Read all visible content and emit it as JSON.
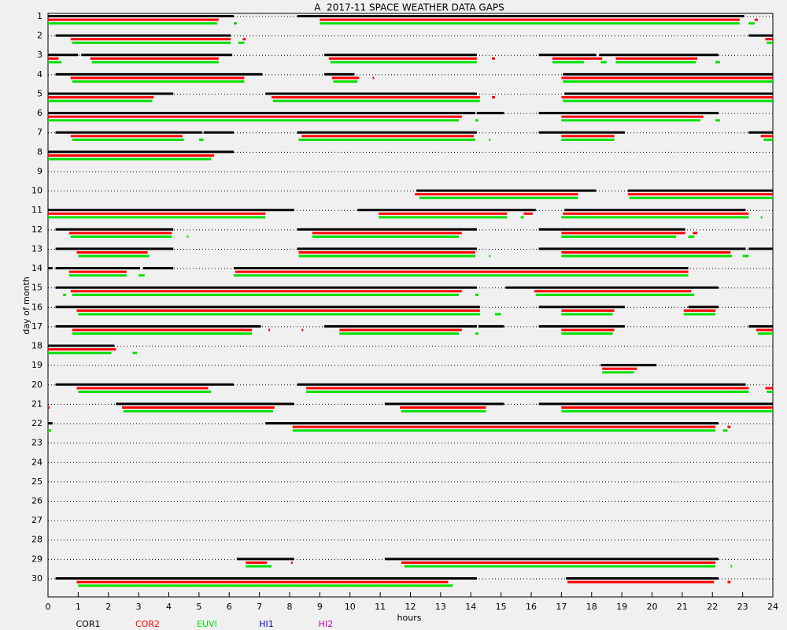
{
  "chart_data": {
    "type": "gaps",
    "title": "A  2017-11 SPACE WEATHER DATA GAPS",
    "x_label": "hours",
    "y_label": "day of month",
    "xlim": [
      0,
      24
    ],
    "xticks": [
      0,
      1,
      2,
      3,
      4,
      5,
      6,
      7,
      8,
      9,
      10,
      11,
      12,
      13,
      14,
      15,
      16,
      17,
      18,
      19,
      20,
      21,
      22,
      23,
      24
    ],
    "categories": [
      1,
      2,
      3,
      4,
      5,
      6,
      7,
      8,
      9,
      10,
      11,
      12,
      13,
      14,
      15,
      16,
      17,
      18,
      19,
      20,
      21,
      22,
      23,
      24,
      25,
      26,
      27,
      28,
      29,
      30
    ],
    "series": [
      {
        "name": "COR1",
        "color": "#000000",
        "gaps": [
          [
            [
              0,
              6.15
            ],
            [
              8.25,
              23.05
            ]
          ],
          [
            [
              0.25,
              6.05
            ],
            [
              23.2,
              24
            ]
          ],
          [
            [
              0,
              1.0
            ],
            [
              1.1,
              6.1
            ],
            [
              9.15,
              14.2
            ],
            [
              16.25,
              18.15
            ],
            [
              18.25,
              22.2
            ]
          ],
          [
            [
              0.25,
              7.1
            ],
            [
              9.15,
              10.15
            ],
            [
              17.05,
              24
            ]
          ],
          [
            [
              0,
              4.15
            ],
            [
              7.2,
              14.2
            ],
            [
              17.1,
              24
            ]
          ],
          [
            [
              0,
              14.15
            ],
            [
              14.2,
              15.1
            ],
            [
              16.25,
              22.2
            ]
          ],
          [
            [
              0.25,
              5.1
            ],
            [
              5.15,
              6.15
            ],
            [
              8.25,
              14.2
            ],
            [
              16.25,
              19.1
            ],
            [
              23.2,
              24
            ]
          ],
          [
            [
              0,
              6.15
            ]
          ],
          [],
          [
            [
              12.2,
              18.15
            ],
            [
              19.2,
              24
            ]
          ],
          [
            [
              0,
              8.15
            ],
            [
              10.25,
              16.15
            ],
            [
              17.1,
              23.1
            ]
          ],
          [
            [
              0.25,
              4.15
            ],
            [
              8.25,
              14.2
            ],
            [
              16.25,
              21.1
            ]
          ],
          [
            [
              0.25,
              4.15
            ],
            [
              8.25,
              14.2
            ],
            [
              16.25,
              23.1
            ],
            [
              23.2,
              24
            ]
          ],
          [
            [
              0,
              0.15
            ],
            [
              0.25,
              3.05
            ],
            [
              3.15,
              4.15
            ],
            [
              6.15,
              21.2
            ]
          ],
          [
            [
              0.25,
              14.2
            ],
            [
              15.15,
              22.2
            ]
          ],
          [
            [
              0.25,
              14.3
            ],
            [
              16.25,
              19.1
            ],
            [
              21.2,
              22.2
            ]
          ],
          [
            [
              0.25,
              7.05
            ],
            [
              9.15,
              14.2
            ],
            [
              14.25,
              15.1
            ],
            [
              16.25,
              19.1
            ],
            [
              23.2,
              24
            ]
          ],
          [
            [
              0,
              2.2
            ]
          ],
          [
            [
              18.3,
              20.15
            ]
          ],
          [
            [
              0.25,
              6.15
            ],
            [
              8.25,
              23.1
            ]
          ],
          [
            [
              2.25,
              8.15
            ],
            [
              11.15,
              15.1
            ],
            [
              16.25,
              24
            ]
          ],
          [
            [
              0,
              0.15
            ],
            [
              7.2,
              22.2
            ]
          ],
          [],
          [],
          [],
          [],
          [],
          [],
          [
            [
              6.25,
              8.15
            ],
            [
              11.15,
              22.2
            ]
          ],
          [
            [
              0.25,
              14.2
            ],
            [
              17.15,
              22.2
            ]
          ]
        ]
      },
      {
        "name": "COR2",
        "color": "#ff0000",
        "gaps": [
          [
            [
              0,
              5.65
            ],
            [
              9.0,
              22.9
            ],
            [
              23.4,
              23.5
            ]
          ],
          [
            [
              0.75,
              6.05
            ],
            [
              6.45,
              6.55
            ],
            [
              23.75,
              24
            ]
          ],
          [
            [
              0,
              0.35
            ],
            [
              1.4,
              5.65
            ],
            [
              9.3,
              14.2
            ],
            [
              14.7,
              14.8
            ],
            [
              16.7,
              18.35
            ],
            [
              18.8,
              21.5
            ]
          ],
          [
            [
              0.75,
              6.5
            ],
            [
              9.4,
              10.3
            ],
            [
              10.75,
              10.8
            ],
            [
              17.0,
              24
            ]
          ],
          [
            [
              0,
              3.5
            ],
            [
              7.4,
              14.3
            ],
            [
              14.7,
              14.8
            ],
            [
              17.0,
              24
            ]
          ],
          [
            [
              0,
              13.7
            ],
            [
              17.0,
              21.7
            ]
          ],
          [
            [
              0.75,
              4.45
            ],
            [
              8.4,
              14.1
            ],
            [
              17.0,
              18.75
            ],
            [
              23.6,
              24
            ]
          ],
          [
            [
              0,
              5.5
            ]
          ],
          [],
          [
            [
              12.15,
              17.55
            ],
            [
              19.2,
              24
            ]
          ],
          [
            [
              0,
              7.2
            ],
            [
              10.95,
              15.2
            ],
            [
              15.75,
              16.05
            ],
            [
              17.05,
              23.2
            ]
          ],
          [
            [
              0.7,
              4.1
            ],
            [
              8.75,
              13.7
            ],
            [
              17.0,
              21.1
            ],
            [
              21.35,
              21.5
            ]
          ],
          [
            [
              0.95,
              3.3
            ],
            [
              8.3,
              14.15
            ],
            [
              17.0,
              22.6
            ]
          ],
          [
            [
              0.7,
              2.6
            ],
            [
              6.2,
              21.2
            ]
          ],
          [
            [
              0.75,
              13.7
            ],
            [
              16.1,
              21.3
            ]
          ],
          [
            [
              0.95,
              14.3
            ],
            [
              17.0,
              18.75
            ],
            [
              21.05,
              22.1
            ]
          ],
          [
            [
              0.8,
              6.75
            ],
            [
              7.3,
              7.35
            ],
            [
              8.4,
              8.45
            ],
            [
              9.65,
              13.7
            ],
            [
              17.0,
              18.75
            ],
            [
              23.45,
              24
            ]
          ],
          [
            [
              0,
              2.25
            ]
          ],
          [
            [
              18.35,
              19.5
            ]
          ],
          [
            [
              0.95,
              5.3
            ],
            [
              8.55,
              23.2
            ],
            [
              23.75,
              24
            ]
          ],
          [
            [
              0,
              0.05
            ],
            [
              2.45,
              7.5
            ],
            [
              11.65,
              14.5
            ],
            [
              17.0,
              24
            ]
          ],
          [
            [
              8.1,
              22.1
            ],
            [
              22.5,
              22.6
            ]
          ],
          [],
          [],
          [],
          [],
          [],
          [],
          [
            [
              6.55,
              7.25
            ],
            [
              8.05,
              8.1
            ],
            [
              11.7,
              22.1
            ]
          ],
          [
            [
              0.95,
              13.25
            ],
            [
              17.2,
              22.05
            ],
            [
              22.5,
              22.6
            ]
          ]
        ]
      },
      {
        "name": "EUVI",
        "color": "#00e000",
        "gaps": [
          [
            [
              0,
              5.6
            ],
            [
              6.15,
              6.25
            ],
            [
              9.0,
              22.9
            ],
            [
              23.2,
              23.4
            ]
          ],
          [
            [
              0.8,
              6.05
            ],
            [
              6.3,
              6.5
            ],
            [
              23.8,
              24
            ]
          ],
          [
            [
              0,
              0.45
            ],
            [
              1.45,
              5.65
            ],
            [
              9.35,
              14.2
            ],
            [
              16.7,
              17.75
            ],
            [
              18.3,
              18.5
            ],
            [
              18.8,
              21.45
            ],
            [
              22.1,
              22.25
            ]
          ],
          [
            [
              0.8,
              6.5
            ],
            [
              9.45,
              10.25
            ],
            [
              17.05,
              24
            ]
          ],
          [
            [
              0,
              3.45
            ],
            [
              7.45,
              14.3
            ],
            [
              17.05,
              24
            ]
          ],
          [
            [
              0,
              13.6
            ],
            [
              14.15,
              14.25
            ],
            [
              17.0,
              21.6
            ],
            [
              22.1,
              22.25
            ]
          ],
          [
            [
              0.8,
              4.5
            ],
            [
              5.0,
              5.15
            ],
            [
              8.3,
              14.15
            ],
            [
              14.6,
              14.65
            ],
            [
              17.0,
              18.75
            ],
            [
              23.7,
              24
            ]
          ],
          [
            [
              0,
              5.4
            ]
          ],
          [],
          [
            [
              12.3,
              17.55
            ],
            [
              19.25,
              24
            ]
          ],
          [
            [
              0,
              7.2
            ],
            [
              10.95,
              15.2
            ],
            [
              15.65,
              15.75
            ],
            [
              17.0,
              23.2
            ],
            [
              23.6,
              23.65
            ]
          ],
          [
            [
              0.75,
              4.1
            ],
            [
              4.6,
              4.65
            ],
            [
              8.75,
              13.6
            ],
            [
              17.0,
              20.8
            ],
            [
              21.2,
              21.4
            ]
          ],
          [
            [
              1.0,
              3.35
            ],
            [
              8.3,
              14.15
            ],
            [
              14.6,
              14.65
            ],
            [
              17.0,
              22.65
            ],
            [
              23.0,
              23.2
            ]
          ],
          [
            [
              0.7,
              2.6
            ],
            [
              3.0,
              3.2
            ],
            [
              6.15,
              21.2
            ]
          ],
          [
            [
              0.5,
              0.6
            ],
            [
              0.8,
              13.6
            ],
            [
              14.15,
              14.25
            ],
            [
              16.15,
              21.4
            ]
          ],
          [
            [
              1.0,
              14.3
            ],
            [
              14.8,
              15.0
            ],
            [
              17.0,
              18.7
            ],
            [
              21.05,
              22.1
            ]
          ],
          [
            [
              0.8,
              6.75
            ],
            [
              9.65,
              13.6
            ],
            [
              14.15,
              14.25
            ],
            [
              17.0,
              18.7
            ],
            [
              23.5,
              24
            ]
          ],
          [
            [
              0,
              2.1
            ],
            [
              2.8,
              2.95
            ]
          ],
          [
            [
              18.35,
              19.4
            ]
          ],
          [
            [
              1.0,
              5.4
            ],
            [
              8.55,
              23.2
            ],
            [
              23.8,
              24
            ]
          ],
          [
            [
              2.5,
              7.45
            ],
            [
              11.7,
              14.5
            ],
            [
              17.0,
              24
            ]
          ],
          [
            [
              0,
              0.1
            ],
            [
              8.1,
              22.1
            ],
            [
              22.35,
              22.5
            ]
          ],
          [],
          [],
          [],
          [],
          [],
          [],
          [
            [
              6.55,
              7.4
            ],
            [
              11.8,
              22.1
            ],
            [
              22.6,
              22.65
            ]
          ],
          [
            [
              1.0,
              13.4
            ]
          ]
        ]
      },
      {
        "name": "HI1",
        "color": "#0000c0",
        "gaps": [
          [],
          [],
          [],
          [],
          [],
          [],
          [],
          [],
          [],
          [],
          [],
          [],
          [],
          [],
          [],
          [],
          [],
          [],
          [],
          [],
          [],
          [],
          [],
          [],
          [],
          [],
          [],
          [],
          [],
          []
        ]
      },
      {
        "name": "HI2",
        "color": "#c000c0",
        "gaps": [
          [],
          [],
          [],
          [],
          [],
          [],
          [],
          [],
          [],
          [],
          [],
          [],
          [],
          [],
          [],
          [],
          [],
          [],
          [],
          [],
          [],
          [],
          [],
          [],
          [],
          [],
          [],
          [],
          [],
          []
        ]
      }
    ]
  }
}
